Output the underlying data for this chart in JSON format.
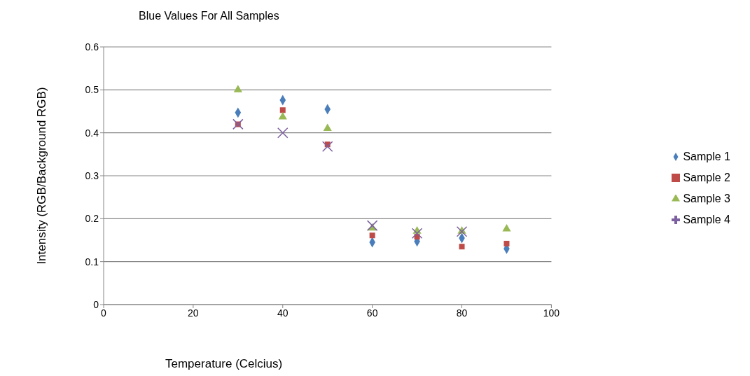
{
  "chart_data": {
    "type": "scatter",
    "title": "Blue Values For All Samples",
    "xlabel": "Temperature (Celcius)",
    "ylabel": "Intensity (RGB/Background RGB)",
    "x": [
      30,
      40,
      50,
      60,
      70,
      80,
      90
    ],
    "series": [
      {
        "name": "Sample 1",
        "color": "#4a7ebb",
        "marker": "diamond",
        "values": [
          0.447,
          0.476,
          0.455,
          0.145,
          0.147,
          0.155,
          0.13
        ]
      },
      {
        "name": "Sample 2",
        "color": "#be4b48",
        "marker": "square",
        "values": [
          0.42,
          0.453,
          0.373,
          0.161,
          0.158,
          0.135,
          0.142
        ]
      },
      {
        "name": "Sample 3",
        "color": "#98b954",
        "marker": "triangle",
        "values": [
          0.5,
          0.437,
          0.41,
          0.178,
          0.171,
          0.171,
          0.176
        ]
      },
      {
        "name": "Sample 4",
        "color": "#7d60a0",
        "marker": "cross",
        "values": [
          0.42,
          0.4,
          0.368,
          0.184,
          0.166,
          0.17,
          null
        ]
      }
    ],
    "xlim": [
      0,
      100
    ],
    "xticks": [
      0,
      20,
      40,
      60,
      80,
      100
    ],
    "ylim": [
      0,
      0.6
    ],
    "yticks": [
      0,
      0.1,
      0.2,
      0.3,
      0.4,
      0.5,
      0.6
    ],
    "grid": "y",
    "legend": "right"
  }
}
